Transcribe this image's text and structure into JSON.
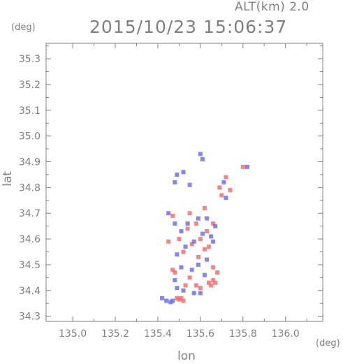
{
  "header": {
    "alt_label": "ALT(km) 2.0",
    "timestamp": "2015/10/23 15:06:37"
  },
  "axes": {
    "ylabel": "lat",
    "xlabel": "lon",
    "yunit": "(deg)",
    "xunit": "(deg)"
  },
  "colors": {
    "axis": "#808080",
    "positive": "#f07070",
    "negative": "#7070f0"
  },
  "chart_data": {
    "type": "scatter",
    "title": "2015/10/23 15:06:37",
    "xlabel": "lon",
    "ylabel": "lat",
    "xlim": [
      134.875,
      136.175
    ],
    "ylim": [
      34.28,
      35.36
    ],
    "xticks": [
      135.0,
      135.2,
      135.4,
      135.6,
      135.8,
      136.0
    ],
    "xtick_labels": [
      "135.0",
      "135.2",
      "135.4",
      "135.6",
      "135.8",
      "136.0"
    ],
    "yticks": [
      34.3,
      34.4,
      34.5,
      34.6,
      34.7,
      34.8,
      34.9,
      35.0,
      35.1,
      35.2,
      35.3
    ],
    "ytick_labels": [
      "34.3",
      "34.4",
      "34.5",
      "34.6",
      "34.7",
      "34.8",
      "34.9",
      "35.0",
      "35.1",
      "35.2",
      "35.3"
    ],
    "grid": false,
    "series": [
      {
        "color": "#f07070",
        "points": [
          [
            135.49,
            34.37
          ],
          [
            135.5,
            34.365
          ],
          [
            135.51,
            34.37
          ],
          [
            135.52,
            34.36
          ],
          [
            135.66,
            34.44
          ],
          [
            135.67,
            34.43
          ],
          [
            135.65,
            34.42
          ],
          [
            135.64,
            34.43
          ],
          [
            135.47,
            34.48
          ],
          [
            135.48,
            34.47
          ],
          [
            135.53,
            34.42
          ],
          [
            135.55,
            34.45
          ],
          [
            135.58,
            34.42
          ],
          [
            135.6,
            34.41
          ],
          [
            135.66,
            34.49
          ],
          [
            135.68,
            34.47
          ],
          [
            135.52,
            34.55
          ],
          [
            135.56,
            34.58
          ],
          [
            135.6,
            34.6
          ],
          [
            135.63,
            34.63
          ],
          [
            135.66,
            34.66
          ],
          [
            135.58,
            34.66
          ],
          [
            135.54,
            34.64
          ],
          [
            135.5,
            34.6
          ],
          [
            135.47,
            34.69
          ],
          [
            135.55,
            34.7
          ],
          [
            135.62,
            34.72
          ],
          [
            135.69,
            34.8
          ],
          [
            135.7,
            34.77
          ],
          [
            135.72,
            34.84
          ],
          [
            135.74,
            34.79
          ],
          [
            135.8,
            34.88
          ],
          [
            135.59,
            34.53
          ],
          [
            135.62,
            34.56
          ],
          [
            135.64,
            34.57
          ],
          [
            135.45,
            34.59
          ]
        ]
      },
      {
        "color": "#7070f0",
        "points": [
          [
            135.44,
            34.36
          ],
          [
            135.46,
            34.355
          ],
          [
            135.47,
            34.36
          ],
          [
            135.42,
            34.37
          ],
          [
            135.49,
            34.41
          ],
          [
            135.52,
            34.4
          ],
          [
            135.57,
            34.39
          ],
          [
            135.6,
            34.39
          ],
          [
            135.48,
            34.44
          ],
          [
            135.51,
            34.49
          ],
          [
            135.56,
            34.48
          ],
          [
            135.62,
            34.46
          ],
          [
            135.49,
            34.54
          ],
          [
            135.53,
            34.57
          ],
          [
            135.57,
            34.59
          ],
          [
            135.61,
            34.62
          ],
          [
            135.65,
            34.61
          ],
          [
            135.51,
            34.63
          ],
          [
            135.54,
            34.66
          ],
          [
            135.59,
            34.68
          ],
          [
            135.63,
            34.68
          ],
          [
            135.67,
            34.65
          ],
          [
            135.48,
            34.66
          ],
          [
            135.45,
            34.7
          ],
          [
            135.48,
            34.82
          ],
          [
            135.49,
            34.85
          ],
          [
            135.52,
            34.86
          ],
          [
            135.55,
            34.81
          ],
          [
            135.61,
            34.91
          ],
          [
            135.6,
            34.93
          ],
          [
            135.71,
            34.82
          ],
          [
            135.72,
            34.76
          ],
          [
            135.82,
            34.88
          ],
          [
            135.59,
            34.5
          ],
          [
            135.63,
            34.52
          ],
          [
            135.66,
            34.59
          ]
        ]
      }
    ]
  }
}
